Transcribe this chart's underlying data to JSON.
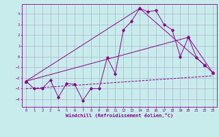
{
  "bg_color": "#c8ecec",
  "grid_color": "#b0b0cc",
  "line_color": "#880088",
  "x_label": "Windchill (Refroidissement éolien,°C)",
  "xlim": [
    -0.5,
    23.5
  ],
  "ylim": [
    -4.7,
    4.9
  ],
  "yticks": [
    -4,
    -3,
    -2,
    -1,
    0,
    1,
    2,
    3,
    4
  ],
  "xticks": [
    0,
    1,
    2,
    3,
    4,
    5,
    6,
    7,
    8,
    9,
    10,
    11,
    12,
    13,
    14,
    15,
    16,
    17,
    18,
    19,
    20,
    21,
    22,
    23
  ],
  "series1_x": [
    0,
    1,
    2,
    3,
    4,
    5,
    6,
    7,
    8,
    9,
    10,
    11,
    12,
    13,
    14,
    15,
    16,
    17,
    18,
    19,
    20,
    21,
    22,
    23
  ],
  "series1_y": [
    -2.3,
    -3.0,
    -3.0,
    -2.2,
    -3.8,
    -2.5,
    -2.6,
    -4.1,
    -3.0,
    -3.0,
    -0.1,
    -1.6,
    2.5,
    3.3,
    4.5,
    4.2,
    4.3,
    3.0,
    2.5,
    0.0,
    1.8,
    -0.1,
    -0.8,
    -1.5
  ],
  "series2_x": [
    0,
    14,
    22
  ],
  "series2_y": [
    -2.3,
    4.5,
    -0.8
  ],
  "series3_x": [
    0,
    20,
    23
  ],
  "series3_y": [
    -2.3,
    1.8,
    -1.5
  ],
  "series4_x": [
    0,
    23
  ],
  "series4_y": [
    -3.0,
    -1.8
  ]
}
